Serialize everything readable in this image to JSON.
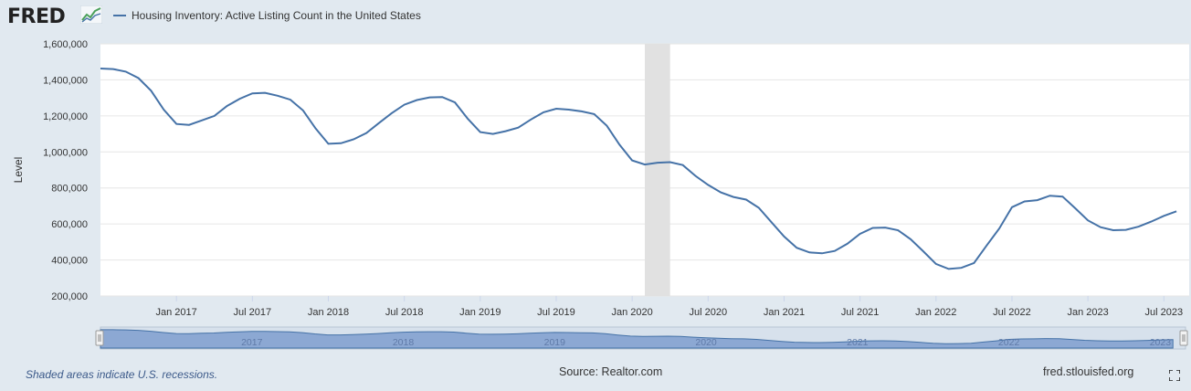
{
  "header": {
    "logo_text": "FRED",
    "logo_icon": "trend-chart-icon",
    "series_title": "Housing Inventory: Active Listing Count in the United States"
  },
  "footer": {
    "note": "Shaded areas indicate U.S. recessions.",
    "source": "Source: Realtor.com",
    "site": "fred.stlouisfed.org"
  },
  "colors": {
    "line": "#4572a7",
    "recession": "#e1e1e1",
    "background": "#e1e9f0",
    "plot": "#ffffff",
    "navigator_fill": "#7f9dcf"
  },
  "chart_data": {
    "type": "line",
    "ylabel": "Level",
    "ylim": [
      200000,
      1600000
    ],
    "y_ticks": [
      200000,
      400000,
      600000,
      800000,
      1000000,
      1200000,
      1400000,
      1600000
    ],
    "y_tick_labels": [
      "200,000",
      "400,000",
      "600,000",
      "800,000",
      "1,000,000",
      "1,200,000",
      "1,400,000",
      "1,600,000"
    ],
    "xlim": [
      "2016-07",
      "2023-09"
    ],
    "x_tick_labels": [
      "Jan 2017",
      "Jul 2017",
      "Jan 2018",
      "Jul 2018",
      "Jan 2019",
      "Jul 2019",
      "Jan 2020",
      "Jul 2020",
      "Jan 2021",
      "Jul 2021",
      "Jan 2022",
      "Jul 2022",
      "Jan 2023",
      "Jul 2023"
    ],
    "x_tick_dates": [
      "2017-01",
      "2017-07",
      "2018-01",
      "2018-07",
      "2019-01",
      "2019-07",
      "2020-01",
      "2020-07",
      "2021-01",
      "2021-07",
      "2022-01",
      "2022-07",
      "2023-01",
      "2023-07"
    ],
    "navigator_labels": [
      "2017",
      "2018",
      "2019",
      "2020",
      "2021",
      "2022",
      "2023"
    ],
    "recession": {
      "start": "2020-02",
      "end": "2020-04"
    },
    "grid": true,
    "legend": "top-left",
    "start": "2016-07",
    "series": [
      {
        "name": "Housing Inventory: Active Listing Count in the United States",
        "values": [
          1463000,
          1460000,
          1446000,
          1410000,
          1340000,
          1235000,
          1155000,
          1150000,
          1175000,
          1200000,
          1255000,
          1295000,
          1325000,
          1328000,
          1312000,
          1290000,
          1230000,
          1130000,
          1045000,
          1048000,
          1070000,
          1105000,
          1160000,
          1215000,
          1262000,
          1288000,
          1303000,
          1305000,
          1275000,
          1185000,
          1110000,
          1100000,
          1115000,
          1135000,
          1180000,
          1220000,
          1240000,
          1235000,
          1225000,
          1210000,
          1145000,
          1040000,
          953000,
          930000,
          940000,
          943000,
          927000,
          867000,
          817000,
          775000,
          750000,
          735000,
          690000,
          610000,
          530000,
          468000,
          442000,
          437000,
          450000,
          490000,
          545000,
          578000,
          580000,
          565000,
          515000,
          448000,
          378000,
          350000,
          356000,
          383000,
          480000,
          575000,
          693000,
          725000,
          732000,
          757000,
          752000,
          687000,
          620000,
          582000,
          565000,
          567000,
          585000,
          613000,
          645000,
          670000
        ]
      }
    ]
  }
}
